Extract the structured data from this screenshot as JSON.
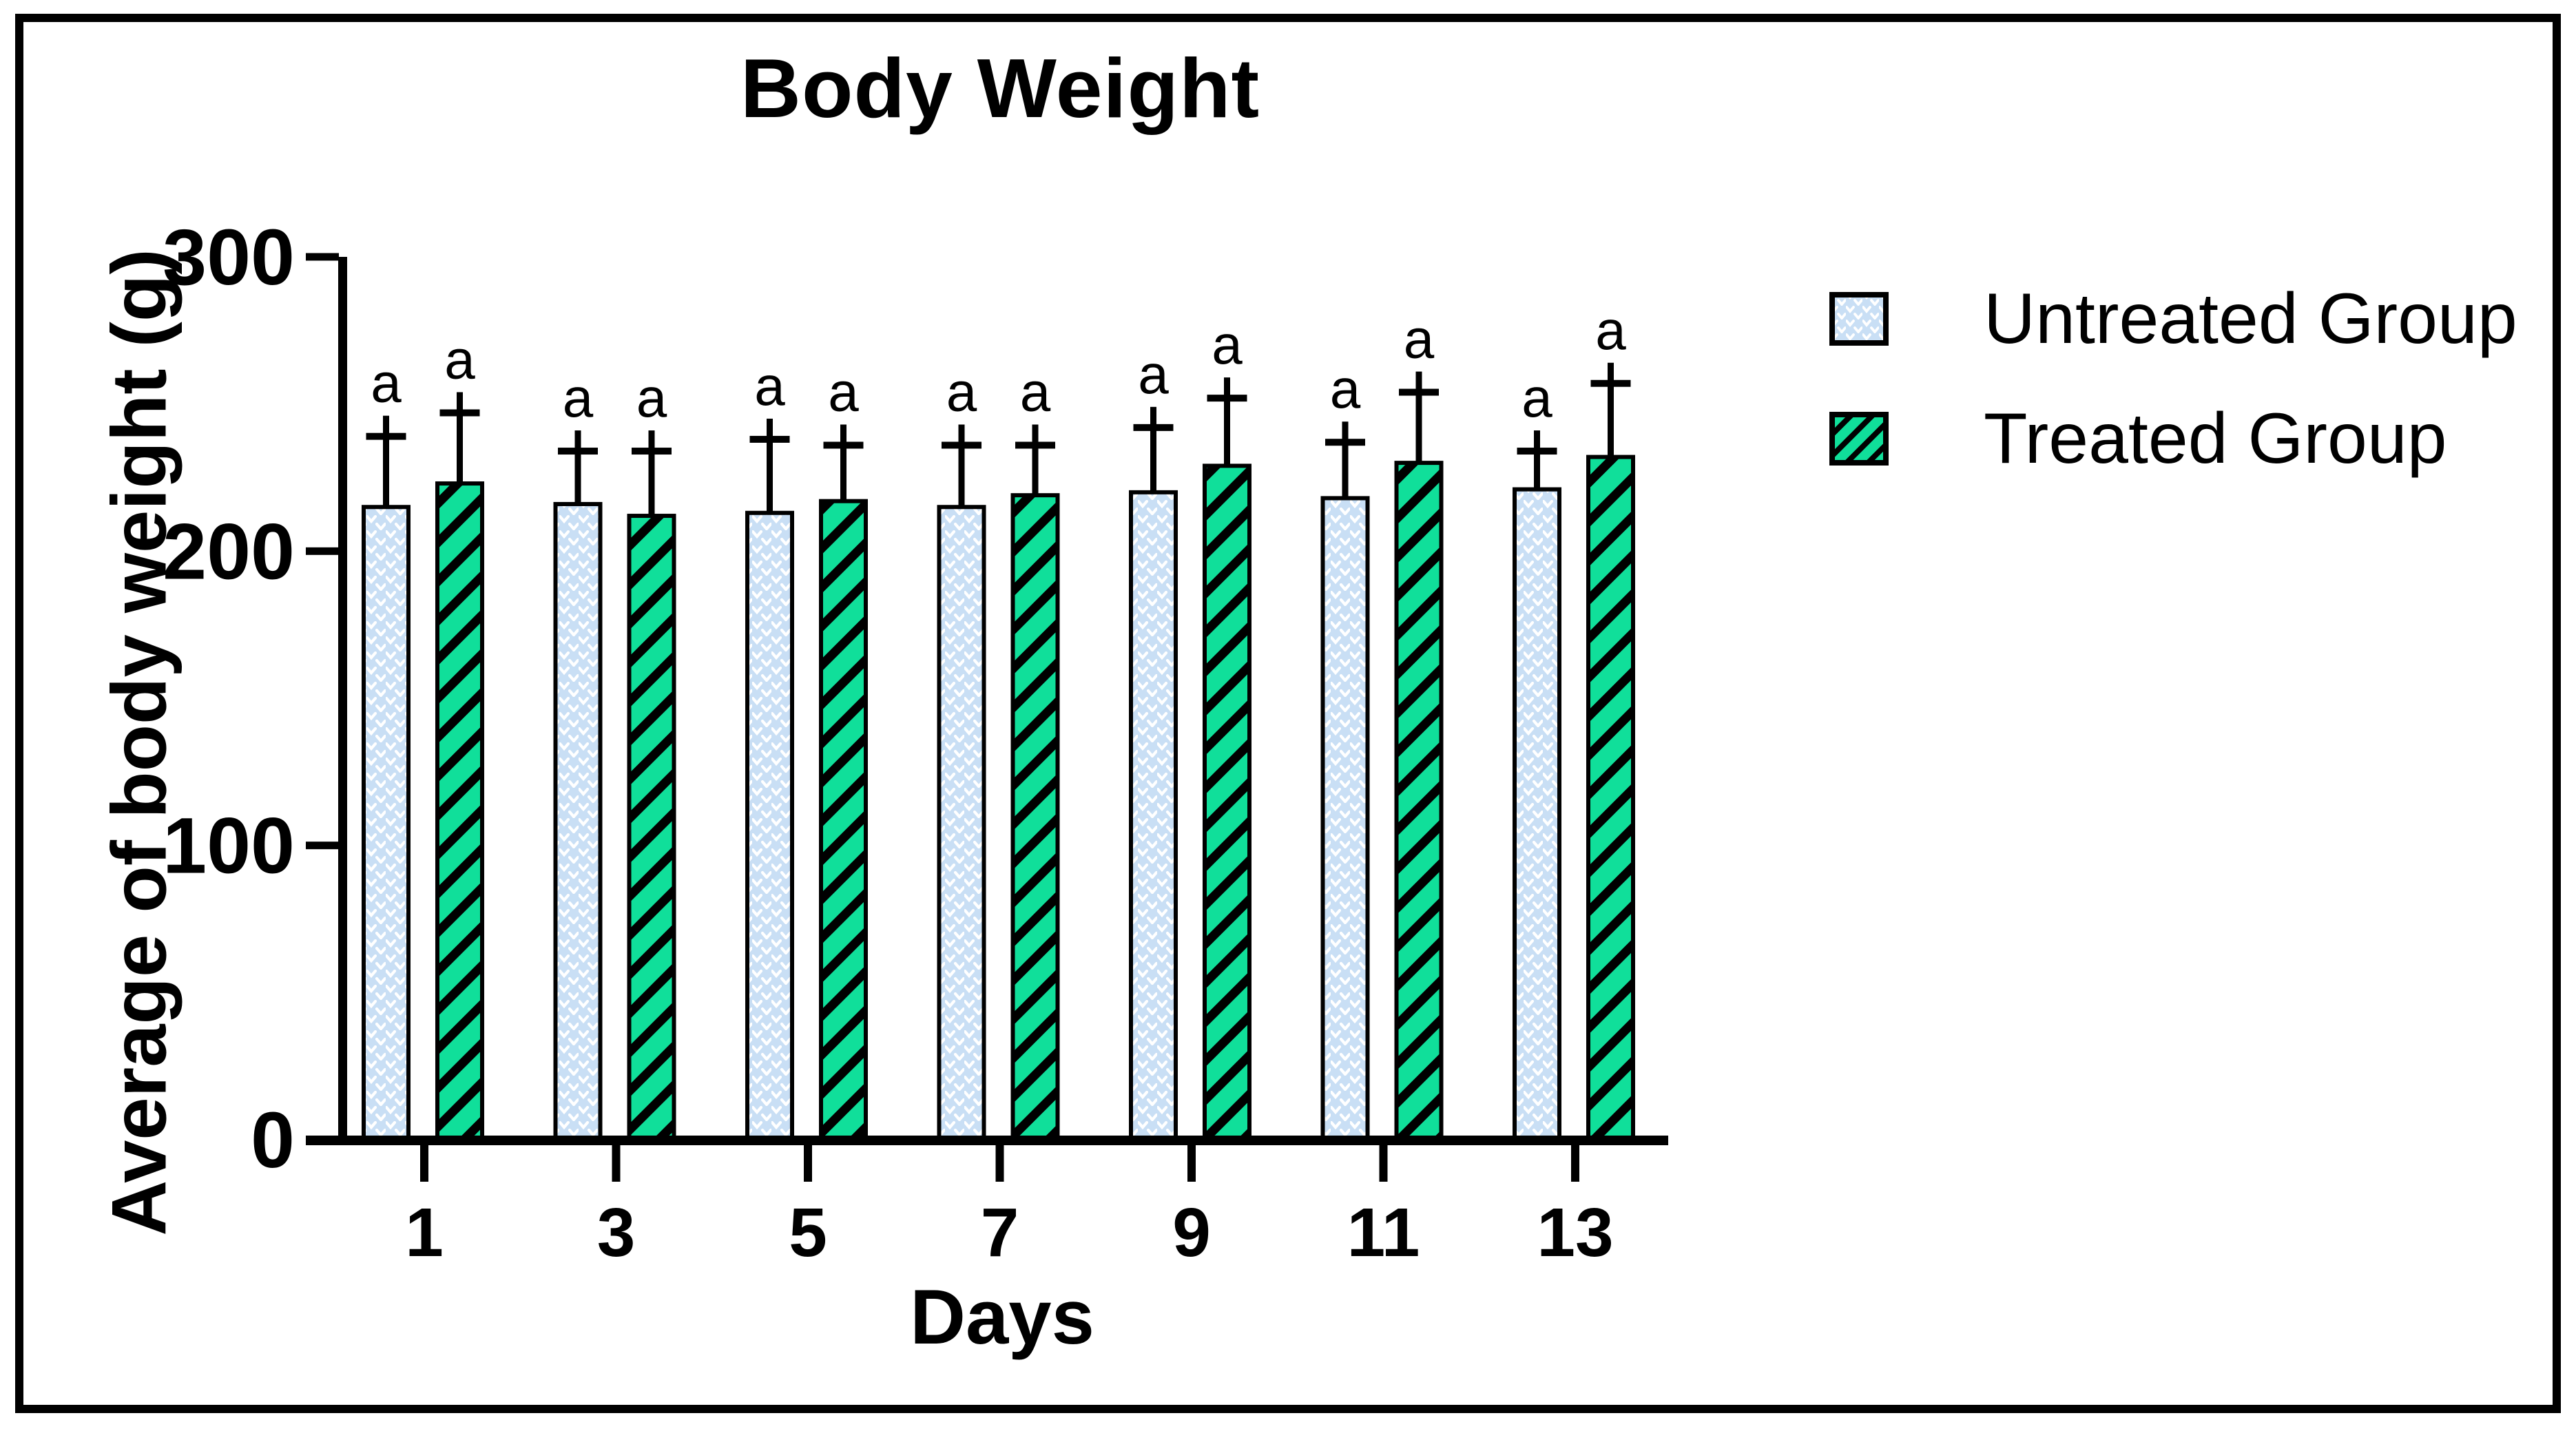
{
  "chart_data": {
    "type": "bar",
    "title": "Body Weight",
    "xlabel": "Days",
    "ylabel": "Average of body weight (g)",
    "categories": [
      "1",
      "3",
      "5",
      "7",
      "9",
      "11",
      "13"
    ],
    "series": [
      {
        "name": "Untreated Group",
        "values": [
          215,
          216,
          213,
          215,
          220,
          218,
          221
        ],
        "error_up": [
          24,
          18,
          25,
          21,
          22,
          19,
          13
        ],
        "significance": [
          "a",
          "a",
          "a",
          "a",
          "a",
          "a",
          "a"
        ]
      },
      {
        "name": "Treated Group",
        "values": [
          223,
          212,
          217,
          219,
          229,
          230,
          232
        ],
        "error_up": [
          24,
          22,
          19,
          17,
          23,
          24,
          25
        ],
        "significance": [
          "a",
          "a",
          "a",
          "a",
          "a",
          "a",
          "a"
        ]
      }
    ],
    "ylim": [
      0,
      300
    ],
    "yticks": [
      0,
      100,
      200,
      300
    ],
    "ytick_labels": [
      "0",
      "100",
      "200",
      "300"
    ],
    "grid": false,
    "legend_position": "right",
    "error_bar_style": "upper-only-capped"
  },
  "legend": {
    "items": [
      {
        "label": "Untreated Group",
        "swatch": "light-blue-chevron-pattern"
      },
      {
        "label": "Treated Group",
        "swatch": "green-diagonal-hatch"
      }
    ]
  },
  "colors": {
    "untreated_fill": "#C9DFF5",
    "untreated_pattern": "#FFFFFF",
    "treated_fill": "#10DF9A",
    "treated_hatch": "#000000",
    "axis": "#000000",
    "text": "#000000",
    "background": "#FFFFFF"
  }
}
